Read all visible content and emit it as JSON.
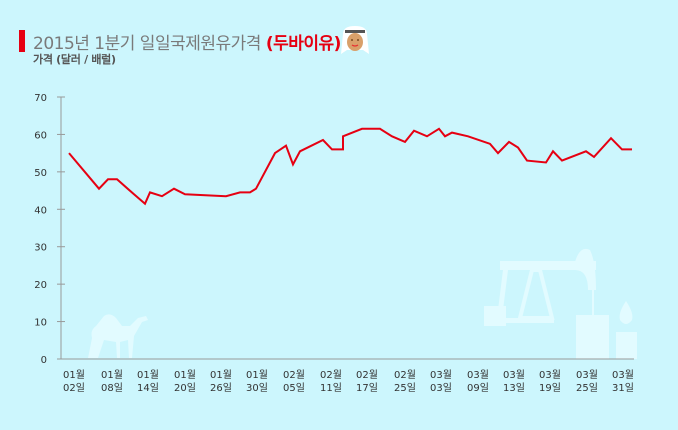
{
  "header": {
    "title_main": "2015년 1분기 일일국제원유가격",
    "title_highlight": "(두바이유)",
    "subtitle": "가격 (달러 / 배럴)",
    "accent_color": "#e60012",
    "avatar_icon": "arab-man-icon"
  },
  "decorations": [
    "camel-icon",
    "oil-pumpjack-icon",
    "oil-barrel-icon",
    "oil-drop-icon"
  ],
  "chart_data": {
    "type": "line",
    "title": "2015년 1분기 일일국제원유가격 (두바이유)",
    "ylabel": "가격 (달러 / 배럴)",
    "xlabel": "",
    "ylim": [
      0,
      70
    ],
    "yticks": [
      "0",
      "10",
      "20",
      "30",
      "40",
      "50",
      "60",
      "70"
    ],
    "grid": false,
    "legend": null,
    "line_color": "#e60012",
    "categories": [
      "01월 02일",
      "01월 08일",
      "01월 14일",
      "01월 20일",
      "01월 26일",
      "01월 30일",
      "02월 05일",
      "02월 11일",
      "02월 17일",
      "02월 25일",
      "03월 03일",
      "03월 09일",
      "03월 13일",
      "03월 19일",
      "03월 25일",
      "03월 31일"
    ],
    "xlabels": [
      {
        "m": "01월",
        "d": "02일"
      },
      {
        "m": "01월",
        "d": "08일"
      },
      {
        "m": "01월",
        "d": "14일"
      },
      {
        "m": "01월",
        "d": "20일"
      },
      {
        "m": "01월",
        "d": "26일"
      },
      {
        "m": "01월",
        "d": "30일"
      },
      {
        "m": "02월",
        "d": "05일"
      },
      {
        "m": "02월",
        "d": "11일"
      },
      {
        "m": "02월",
        "d": "17일"
      },
      {
        "m": "02월",
        "d": "25일"
      },
      {
        "m": "03월",
        "d": "03일"
      },
      {
        "m": "03월",
        "d": "09일"
      },
      {
        "m": "03월",
        "d": "13일"
      },
      {
        "m": "03월",
        "d": "19일"
      },
      {
        "m": "03월",
        "d": "25일"
      },
      {
        "m": "03월",
        "d": "31일"
      }
    ],
    "series": [
      {
        "name": "두바이유",
        "points": [
          [
            69,
            55.0
          ],
          [
            99,
            45.5
          ],
          [
            108,
            48.0
          ],
          [
            117,
            48.0
          ],
          [
            134,
            44.0
          ],
          [
            145,
            41.5
          ],
          [
            150,
            44.5
          ],
          [
            162,
            43.5
          ],
          [
            174,
            45.5
          ],
          [
            185,
            44.0
          ],
          [
            226,
            43.5
          ],
          [
            240,
            44.5
          ],
          [
            250,
            44.5
          ],
          [
            256,
            45.5
          ],
          [
            275,
            55.0
          ],
          [
            286,
            57.0
          ],
          [
            293,
            52.0
          ],
          [
            300,
            55.5
          ],
          [
            323,
            58.5
          ],
          [
            332,
            56.0
          ],
          [
            343,
            56.0
          ],
          [
            343,
            59.5
          ],
          [
            362,
            61.5
          ],
          [
            380,
            61.5
          ],
          [
            392,
            59.5
          ],
          [
            405,
            58.0
          ],
          [
            414,
            61.0
          ],
          [
            427,
            59.5
          ],
          [
            439,
            61.5
          ],
          [
            445,
            59.5
          ],
          [
            452,
            60.5
          ],
          [
            468,
            59.5
          ],
          [
            490,
            57.5
          ],
          [
            498,
            55.0
          ],
          [
            509,
            58.0
          ],
          [
            518,
            56.5
          ],
          [
            527,
            53.0
          ],
          [
            546,
            52.5
          ],
          [
            553,
            55.5
          ],
          [
            562,
            53.0
          ],
          [
            586,
            55.5
          ],
          [
            594,
            54.0
          ],
          [
            611,
            59.0
          ],
          [
            622,
            56.0
          ],
          [
            632,
            56.0
          ]
        ]
      }
    ]
  }
}
